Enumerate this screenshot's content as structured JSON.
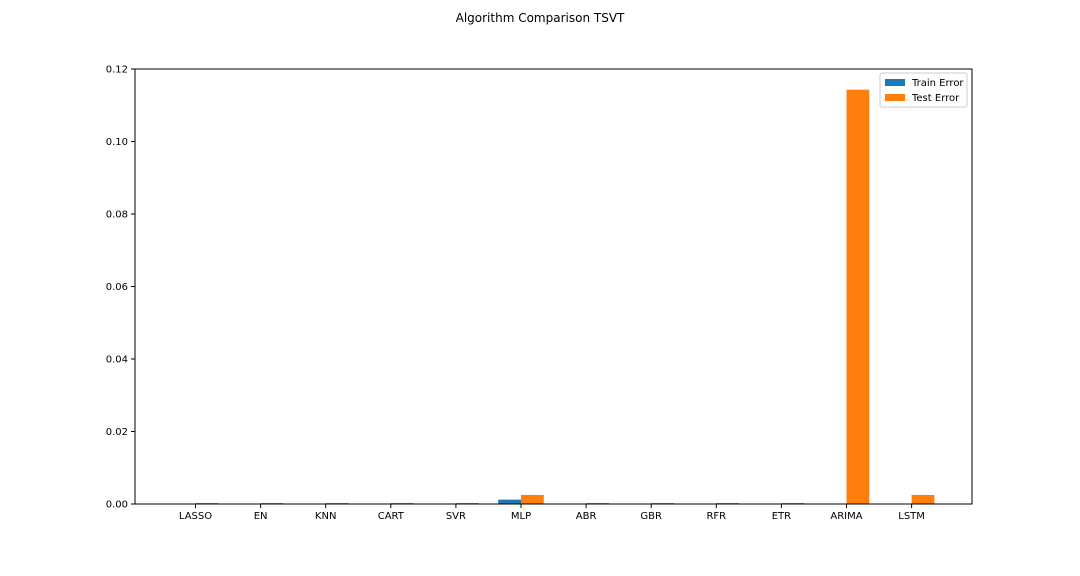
{
  "chart_data": {
    "type": "bar",
    "title": "Algorithm Comparison TSVT",
    "xlabel": "",
    "ylabel": "",
    "categories": [
      "LASSO",
      "EN",
      "KNN",
      "CART",
      "SVR",
      "MLP",
      "ABR",
      "GBR",
      "RFR",
      "ETR",
      "ARIMA",
      "LSTM"
    ],
    "series": [
      {
        "name": "Train Error",
        "color": "#1f77b4",
        "values": [
          0.0,
          0.0,
          0.0,
          0.0,
          0.0,
          0.0012,
          0.0,
          0.0,
          0.0,
          0.0,
          0.0,
          0.0
        ]
      },
      {
        "name": "Test Error",
        "color": "#ff7f0e",
        "values": [
          0.0003,
          0.0003,
          0.0003,
          0.0003,
          0.0003,
          0.0025,
          0.0003,
          0.0003,
          0.0003,
          0.0003,
          0.1143,
          0.0025
        ]
      }
    ],
    "ylim": [
      0,
      0.12
    ],
    "yticks": [
      "0.00",
      "0.02",
      "0.04",
      "0.06",
      "0.08",
      "0.10",
      "0.12"
    ],
    "grid": false,
    "legend_position": "top-right"
  }
}
